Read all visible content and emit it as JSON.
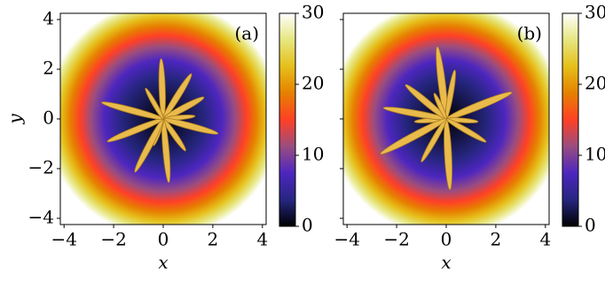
{
  "chart_data": [
    {
      "type": "heatmap",
      "panel_label": "(a)",
      "xlabel": "x",
      "ylabel": "y",
      "xlim": [
        -4.15,
        4.15
      ],
      "ylim": [
        -4.25,
        4.25
      ],
      "xticks": [
        {
          "value": -4,
          "label": "−4"
        },
        {
          "value": -2,
          "label": "−2"
        },
        0,
        2,
        4
      ],
      "yticks": [
        {
          "value": -4,
          "label": "−4"
        },
        {
          "value": -2,
          "label": "−2"
        },
        0,
        2,
        4
      ],
      "clim": [
        0,
        30
      ],
      "cticks": [
        0,
        10,
        20,
        30
      ],
      "colormap": [
        "#000000",
        "#262680",
        "#4d26bf",
        "#994d80",
        "#ff4026",
        "#e68000",
        "#e6bf1a",
        "#e6e680",
        "#ffffff"
      ]
    },
    {
      "type": "heatmap",
      "panel_label": "(b)",
      "xlabel": "x",
      "xlim": [
        -4.15,
        4.15
      ],
      "ylim": [
        -4.25,
        4.25
      ],
      "xticks": [
        {
          "value": -4,
          "label": "−4"
        },
        {
          "value": -2,
          "label": "−2"
        },
        0,
        2,
        4
      ],
      "yticks": [
        -4,
        -2,
        0,
        2,
        4
      ],
      "clim": [
        0,
        30
      ],
      "cticks": [
        0,
        10,
        20,
        30
      ],
      "colormap": [
        "#000000",
        "#262680",
        "#4d26bf",
        "#994d80",
        "#ff4026",
        "#e68000",
        "#e6bf1a",
        "#e6e680",
        "#ffffff"
      ]
    }
  ]
}
